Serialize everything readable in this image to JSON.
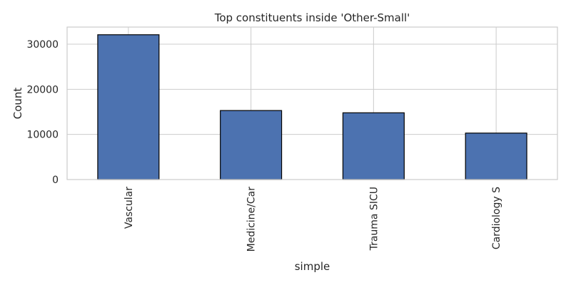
{
  "chart_data": {
    "type": "bar",
    "title": "Top constituents inside 'Other-Small'",
    "xlabel": "simple",
    "ylabel": "Count",
    "categories": [
      "Vascular",
      "Medicine/Car",
      "Trauma SICU",
      "Cardiology S"
    ],
    "values": [
      32100,
      15300,
      14800,
      10300
    ],
    "ylim": [
      0,
      33800
    ],
    "yticks": [
      0,
      10000,
      20000,
      30000
    ],
    "grid": true,
    "colors": {
      "bar": "#4c72b0",
      "bar_edge": "#000000",
      "grid": "#cccccc",
      "axes_edge": "#cccccc"
    }
  }
}
